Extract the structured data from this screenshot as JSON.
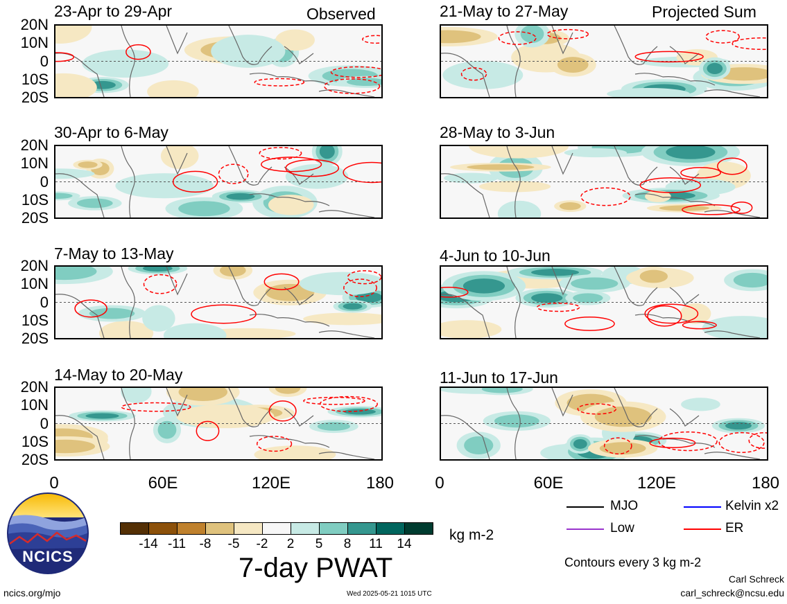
{
  "chart_data": {
    "type": "heatmap",
    "variable": "7-day PWAT",
    "units": "kg m-2",
    "x_ticks": [
      "0",
      "60E",
      "120E",
      "180"
    ],
    "y_ticks": [
      "20N",
      "10N",
      "0",
      "10S",
      "20S"
    ],
    "column_headers": [
      "Observed",
      "Projected Sum"
    ],
    "panels": [
      {
        "title": "23-Apr to 29-Apr",
        "column": "Observed"
      },
      {
        "title": "30-Apr to 6-May",
        "column": "Observed"
      },
      {
        "title": "7-May to 13-May",
        "column": "Observed"
      },
      {
        "title": "14-May to 20-May",
        "column": "Observed"
      },
      {
        "title": "21-May to 27-May",
        "column": "Projected Sum"
      },
      {
        "title": "28-May to 3-Jun",
        "column": "Projected Sum"
      },
      {
        "title": "4-Jun to 10-Jun",
        "column": "Projected Sum"
      },
      {
        "title": "11-Jun to 17-Jun",
        "column": "Projected Sum"
      }
    ],
    "colorbar": {
      "labels": [
        "-14",
        "-11",
        "-8",
        "-5",
        "-2",
        "2",
        "5",
        "8",
        "11",
        "14"
      ],
      "colors": [
        "#543005",
        "#8c510a",
        "#bf812d",
        "#dfc27d",
        "#f6e8c3",
        "#f7f7f7",
        "#c7eae5",
        "#80cdc1",
        "#35978f",
        "#01665e",
        "#003c30"
      ]
    },
    "legend": [
      {
        "label": "MJO",
        "color": "#000000"
      },
      {
        "label": "Kelvin x2",
        "color": "#0000ff"
      },
      {
        "label": "Low",
        "color": "#9933cc"
      },
      {
        "label": "ER",
        "color": "#ff0000"
      }
    ],
    "contour_note": "Contours every 3 kg m-2"
  },
  "footer": {
    "logo_text": "NCICS",
    "url": "ncics.org/mjo",
    "timestamp": "Wed 2025-05-21 1015 UTC",
    "author": "Carl Schreck",
    "email": "carl_schreck@ncsu.edu"
  }
}
